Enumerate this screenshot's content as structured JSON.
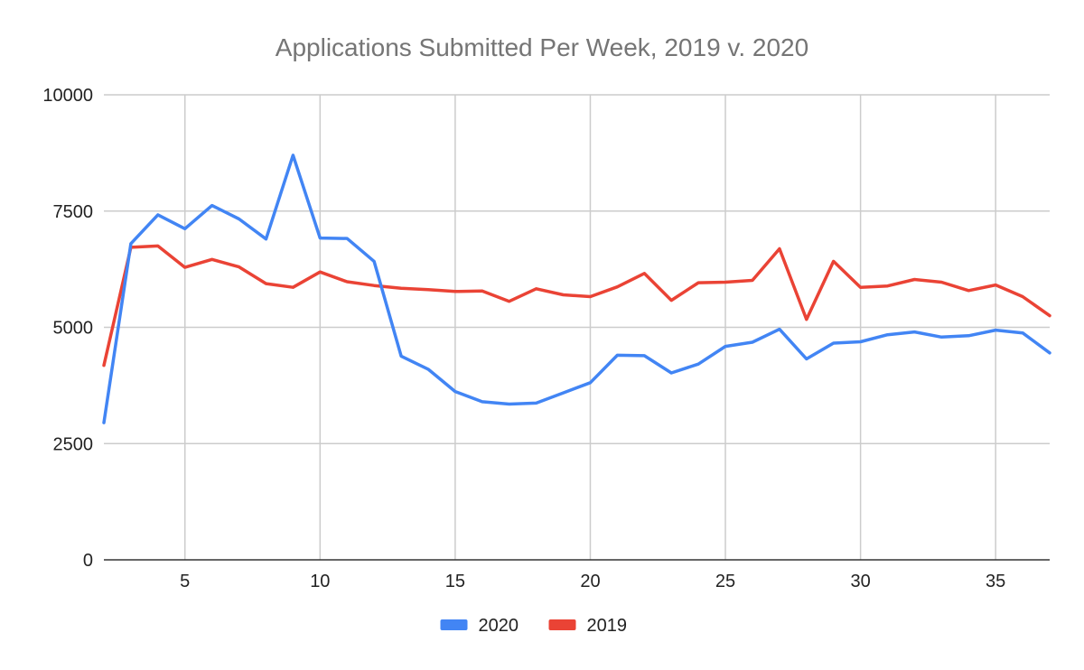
{
  "chart_data": {
    "type": "line",
    "title": "Applications Submitted Per Week, 2019 v. 2020",
    "xlabel": "",
    "ylabel": "",
    "xlim": [
      2,
      37
    ],
    "ylim": [
      0,
      10000
    ],
    "x_ticks": [
      5,
      10,
      15,
      20,
      25,
      30,
      35
    ],
    "y_ticks": [
      0,
      2500,
      5000,
      7500,
      10000
    ],
    "grid": true,
    "legend_position": "bottom",
    "x": [
      2,
      3,
      4,
      5,
      6,
      7,
      8,
      9,
      10,
      11,
      12,
      13,
      14,
      15,
      16,
      17,
      18,
      19,
      20,
      21,
      22,
      23,
      24,
      25,
      26,
      27,
      28,
      29,
      30,
      31,
      32,
      33,
      34,
      35,
      36,
      37
    ],
    "series": [
      {
        "name": "2020",
        "color": "#4285f4",
        "values": [
          2950,
          6800,
          7420,
          7120,
          7620,
          7330,
          6900,
          8700,
          6920,
          6910,
          6420,
          4380,
          4100,
          3620,
          3400,
          3350,
          3370,
          3590,
          3810,
          4400,
          4390,
          4020,
          4210,
          4590,
          4680,
          4960,
          4320,
          4660,
          4690,
          4840,
          4900,
          4790,
          4820,
          4940,
          4880,
          4450
        ]
      },
      {
        "name": "2019",
        "color": "#ea4335",
        "values": [
          4180,
          6720,
          6750,
          6290,
          6460,
          6300,
          5940,
          5860,
          6190,
          5980,
          5900,
          5840,
          5810,
          5770,
          5780,
          5560,
          5830,
          5700,
          5660,
          5870,
          6160,
          5580,
          5960,
          5970,
          6010,
          6690,
          5170,
          6420,
          5860,
          5890,
          6030,
          5970,
          5790,
          5910,
          5660,
          5250
        ]
      }
    ]
  }
}
